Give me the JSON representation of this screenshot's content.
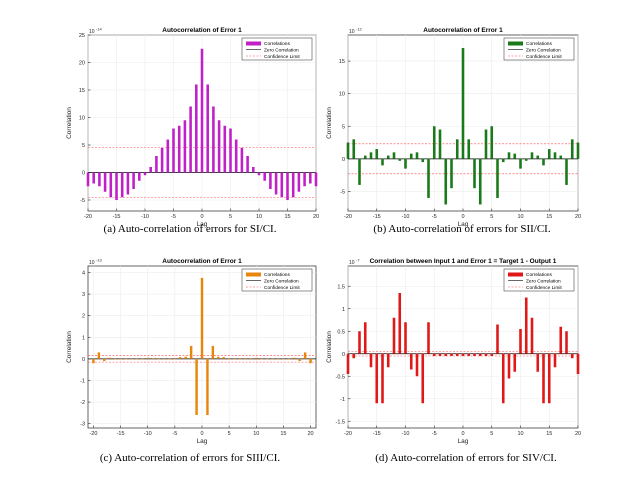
{
  "chart_data": [
    {
      "type": "bar",
      "title": "Autocorrelation of Error 1",
      "xlabel": "Lag",
      "ylabel": "Correlation",
      "exponent": "10",
      "exponent_power": "-14",
      "color": "#c020c8",
      "xlim": [
        -20,
        20
      ],
      "ylim": [
        -7,
        25
      ],
      "xticks": [
        "-20",
        "-15",
        "-10",
        "-5",
        "0",
        "5",
        "10",
        "15",
        "20"
      ],
      "yticks": [
        "-5",
        "0",
        "5",
        "10",
        "15",
        "20",
        "25"
      ],
      "confidence_limit": 4.5,
      "legend": [
        "Correlations",
        "Zero Correlation",
        "Confidence Limit"
      ],
      "lags": [
        -20,
        -19,
        -18,
        -17,
        -16,
        -15,
        -14,
        -13,
        -12,
        -11,
        -10,
        -9,
        -8,
        -7,
        -6,
        -5,
        -4,
        -3,
        -2,
        -1,
        0,
        1,
        2,
        3,
        4,
        5,
        6,
        7,
        8,
        9,
        10,
        11,
        12,
        13,
        14,
        15,
        16,
        17,
        18,
        19,
        20
      ],
      "values": [
        -2.5,
        -2.0,
        -2.5,
        -3.5,
        -4.5,
        -5.0,
        -4.5,
        -4.0,
        -3.0,
        -1.5,
        -0.5,
        1.0,
        3.0,
        4.5,
        6.0,
        8.0,
        8.5,
        9.5,
        12.0,
        16.0,
        22.5,
        16.0,
        12.0,
        9.5,
        8.5,
        8.0,
        6.0,
        4.5,
        3.0,
        1.0,
        -0.5,
        -1.5,
        -3.0,
        -4.0,
        -4.5,
        -5.0,
        -4.5,
        -3.5,
        -2.5,
        -2.0,
        -2.5
      ],
      "caption": "(a) Auto-correlation of errors for SI/CI."
    },
    {
      "type": "bar",
      "title": "Autocorrelation of Error 1",
      "xlabel": "Lag",
      "ylabel": "Correlation",
      "exponent": "10",
      "exponent_power": "-12",
      "color": "#1a7a1a",
      "xlim": [
        -20,
        20
      ],
      "ylim": [
        -8,
        19
      ],
      "xticks": [
        "-20",
        "-15",
        "-10",
        "-5",
        "0",
        "5",
        "10",
        "15",
        "20"
      ],
      "yticks": [
        "-5",
        "0",
        "5",
        "10",
        "15"
      ],
      "confidence_limit": 2.3,
      "legend": [
        "Correlations",
        "Zero Correlation",
        "Confidence Limit"
      ],
      "lags": [
        -20,
        -19,
        -18,
        -17,
        -16,
        -15,
        -14,
        -13,
        -12,
        -11,
        -10,
        -9,
        -8,
        -7,
        -6,
        -5,
        -4,
        -3,
        -2,
        -1,
        0,
        1,
        2,
        3,
        4,
        5,
        6,
        7,
        8,
        9,
        10,
        11,
        12,
        13,
        14,
        15,
        16,
        17,
        18,
        19,
        20
      ],
      "values": [
        2.5,
        3.0,
        -4.0,
        0.5,
        1.0,
        1.5,
        -1.0,
        0.5,
        1.0,
        -0.3,
        -1.5,
        0.8,
        1.0,
        -0.5,
        -6.0,
        5.0,
        4.5,
        -7.0,
        -4.5,
        3.0,
        17.0,
        3.0,
        -4.5,
        -7.0,
        4.5,
        5.0,
        -6.0,
        -0.5,
        1.0,
        0.8,
        -1.5,
        -0.3,
        1.0,
        0.5,
        -1.0,
        1.5,
        1.0,
        0.5,
        -4.0,
        3.0,
        2.5
      ],
      "caption": "(b) Auto-correlation of errors for SII/CI."
    },
    {
      "type": "bar",
      "title": "Autocorrelation of Error 1",
      "xlabel": "Lag",
      "ylabel": "Correlation",
      "exponent": "10",
      "exponent_power": "-13",
      "color": "#e8860c",
      "xlim": [
        -21,
        21
      ],
      "ylim": [
        -3.2,
        4.3
      ],
      "xticks": [
        "-20",
        "-15",
        "-10",
        "-5",
        "0",
        "5",
        "10",
        "15",
        "20"
      ],
      "yticks": [
        "-3",
        "-2",
        "-1",
        "0",
        "1",
        "2",
        "3",
        "4"
      ],
      "confidence_limit": 0.15,
      "legend": [
        "Correlations",
        "Zero Correlation",
        "Confidence Limit"
      ],
      "lags": [
        -20,
        -19,
        -18,
        -17,
        -16,
        -15,
        -14,
        -13,
        -12,
        -11,
        -10,
        -9,
        -8,
        -7,
        -6,
        -5,
        -4,
        -3,
        -2,
        -1,
        0,
        1,
        2,
        3,
        4,
        5,
        6,
        7,
        8,
        9,
        10,
        11,
        12,
        13,
        14,
        15,
        16,
        17,
        18,
        19,
        20
      ],
      "values": [
        -0.2,
        0.3,
        -0.1,
        0.05,
        0.0,
        0.0,
        0.0,
        0.0,
        0.0,
        0.0,
        0.05,
        0.03,
        0.0,
        -0.03,
        0.0,
        0.0,
        0.08,
        0.1,
        0.6,
        -2.6,
        3.75,
        -2.6,
        0.6,
        0.1,
        0.08,
        0.0,
        0.0,
        -0.03,
        0.0,
        0.03,
        0.05,
        0.0,
        0.0,
        0.0,
        0.0,
        0.0,
        0.0,
        0.05,
        -0.1,
        0.3,
        -0.2
      ],
      "caption": "(c) Auto-correlation of errors for SIII/CI."
    },
    {
      "type": "bar",
      "title": "Correlation between Input 1 and Error 1 = Target 1 - Output 1",
      "xlabel": "Lag",
      "ylabel": "Correlation",
      "exponent": "10",
      "exponent_power": "-7",
      "color": "#e01818",
      "xlim": [
        -20,
        20
      ],
      "ylim": [
        -1.65,
        1.95
      ],
      "xticks": [
        "-20",
        "-15",
        "-10",
        "-5",
        "0",
        "5",
        "10",
        "15",
        "20"
      ],
      "yticks": [
        "-1.5",
        "-1",
        "-0.5",
        "0",
        "0.5",
        "1",
        "1.5"
      ],
      "confidence_limit": 0.05,
      "legend": [
        "Correlations",
        "Zero Correlation",
        "Confidence Limit"
      ],
      "lags": [
        -20,
        -19,
        -18,
        -17,
        -16,
        -15,
        -14,
        -13,
        -12,
        -11,
        -10,
        -9,
        -8,
        -7,
        -6,
        -5,
        -4,
        -3,
        -2,
        -1,
        0,
        1,
        2,
        3,
        4,
        5,
        6,
        7,
        8,
        9,
        10,
        11,
        12,
        13,
        14,
        15,
        16,
        17,
        18,
        19,
        20
      ],
      "values": [
        -0.45,
        -0.1,
        0.5,
        0.7,
        -0.3,
        -1.1,
        -1.1,
        -0.3,
        0.8,
        1.35,
        0.7,
        -0.35,
        -0.5,
        -1.1,
        0.7,
        -0.05,
        -0.05,
        -0.05,
        -0.05,
        -0.05,
        -0.05,
        -0.05,
        -0.05,
        -0.05,
        -0.05,
        -0.05,
        0.65,
        -1.1,
        -0.55,
        -0.4,
        0.55,
        1.25,
        0.8,
        -0.4,
        -1.1,
        -1.1,
        -0.3,
        0.6,
        0.5,
        -0.1,
        -0.45
      ],
      "caption": "(d) Auto-correlation of errors for SIV/CI."
    }
  ]
}
